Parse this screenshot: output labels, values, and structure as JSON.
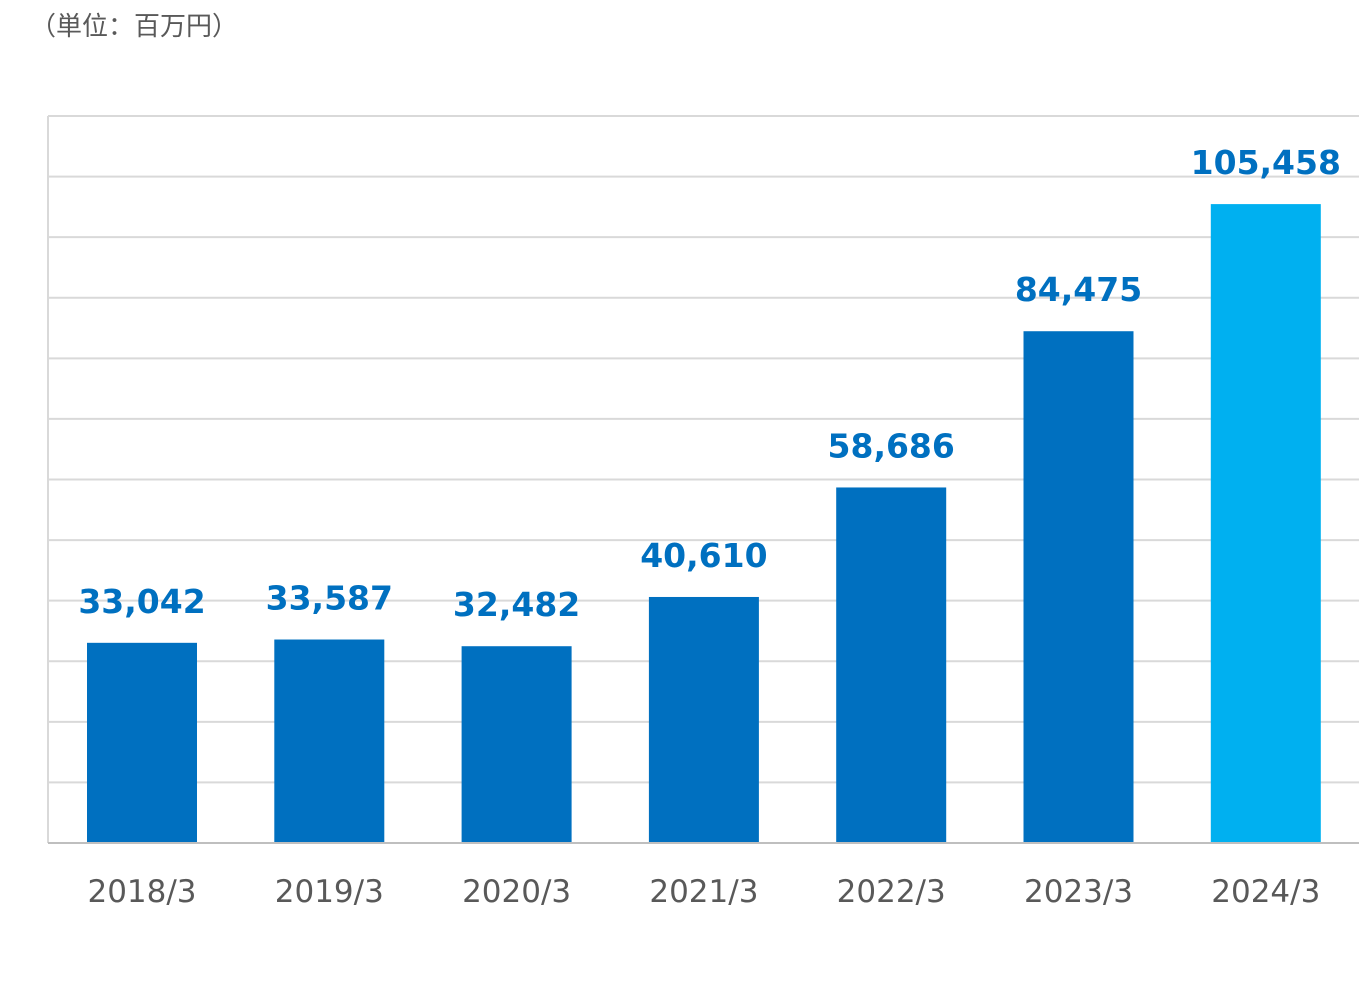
{
  "unit_label": "（単位：百万円）",
  "chart_data": {
    "type": "bar",
    "categories": [
      "2018/3",
      "2019/3",
      "2020/3",
      "2021/3",
      "2022/3",
      "2023/3",
      "2024/3"
    ],
    "values": [
      33042,
      33587,
      32482,
      40610,
      58686,
      84475,
      105458
    ],
    "value_labels": [
      "33,042",
      "33,587",
      "32,482",
      "40,610",
      "58,686",
      "84,475",
      "105,458"
    ],
    "ylim": [
      0,
      120000
    ],
    "grid": true,
    "title": "",
    "xlabel": "",
    "ylabel": ""
  },
  "colors": {
    "bar": "#0070C0",
    "highlight_bar": "#00B0F0",
    "label": "#0070C0",
    "grid": "#D9D9D9",
    "axis": "#BFBFBF"
  }
}
